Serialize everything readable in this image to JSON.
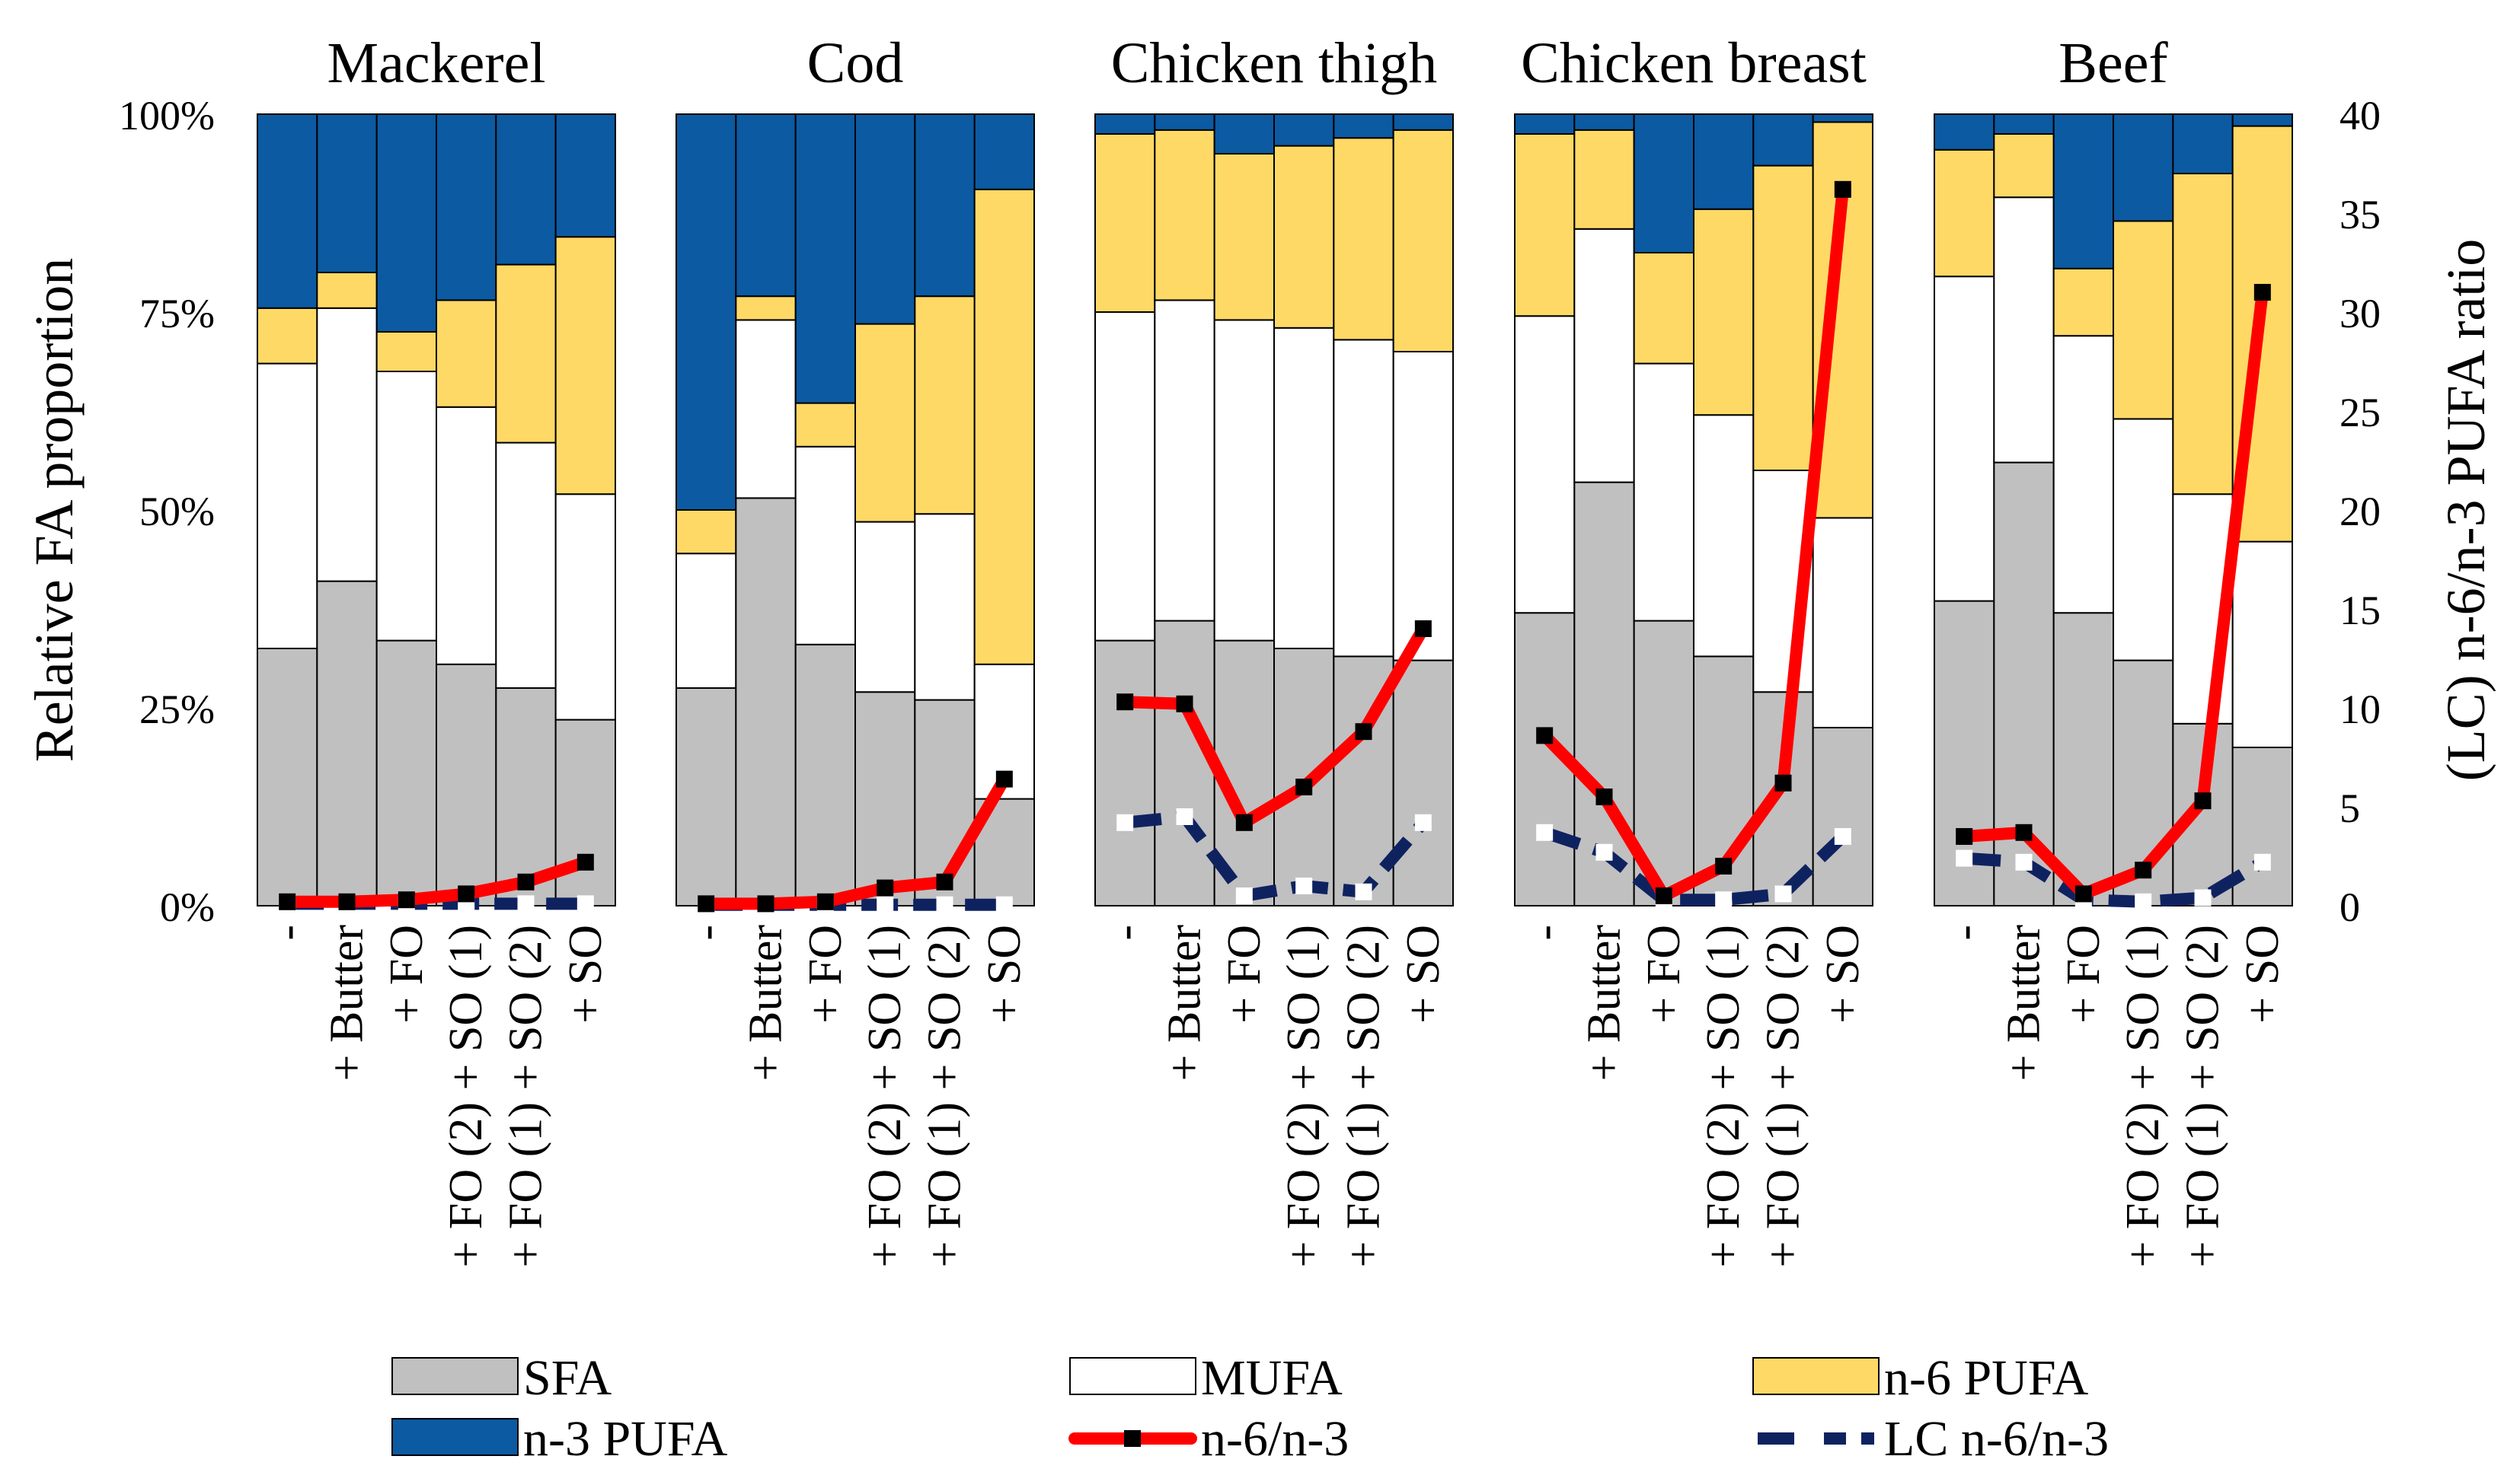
{
  "chart_data": {
    "type": "stacked-bar-with-lines",
    "y_left_label": "Relative FA proportion",
    "y_right_label": "(LC) n-6/n-3 PUFA ratio",
    "y_left_ticks": [
      "0%",
      "25%",
      "50%",
      "75%",
      "100%"
    ],
    "y_left_range": [
      0,
      100
    ],
    "y_right_ticks": [
      "0",
      "5",
      "10",
      "15",
      "20",
      "25",
      "30",
      "35",
      "40"
    ],
    "y_right_range": [
      0,
      40
    ],
    "categories": [
      "-",
      "+ Butter",
      "+ FO",
      "+ FO (2) + SO (1)",
      "+ FO (1) + SO (2)",
      "+ SO"
    ],
    "colors": {
      "SFA": "#c0c0c0",
      "MUFA": "#ffffff",
      "n6": "#ffd966",
      "n3": "#0b5aa2",
      "ratio_line": "#ff0000",
      "ratio_marker": "#000000",
      "lc_line": "#0f2260",
      "lc_marker": "#ffffff",
      "outline": "#000000"
    },
    "legend": {
      "sfa": "SFA",
      "mufa": "MUFA",
      "n6": "n-6 PUFA",
      "n3": "n-3 PUFA",
      "ratio": "n-6/n-3",
      "lc": "LC n-6/n-3"
    },
    "panels": [
      {
        "title": "Mackerel",
        "SFA": [
          32.5,
          41,
          33.5,
          30.5,
          27.5,
          23.5
        ],
        "MUFA": [
          36,
          34.5,
          34,
          32.5,
          31,
          28.5
        ],
        "n6": [
          7,
          4.5,
          5,
          13.5,
          22.5,
          32.5
        ],
        "n3": [
          24.5,
          20,
          27.5,
          23.5,
          19,
          15.5
        ],
        "ratio": [
          0.2,
          0.2,
          0.3,
          0.6,
          1.2,
          2.2
        ],
        "lc_ratio": [
          0.1,
          0.1,
          0.1,
          0.1,
          0.1,
          0.1
        ]
      },
      {
        "title": "Cod",
        "SFA": [
          27.5,
          51.5,
          33,
          27,
          26,
          13.5
        ],
        "MUFA": [
          17,
          22.5,
          25,
          21.5,
          23.5,
          17
        ],
        "n6": [
          5.5,
          3,
          5.5,
          25,
          27.5,
          60
        ],
        "n3": [
          50,
          23,
          36.5,
          26.5,
          23,
          9.5
        ],
        "ratio": [
          0.1,
          0.1,
          0.2,
          0.9,
          1.2,
          6.4
        ],
        "lc_ratio": [
          0.05,
          0.05,
          0.05,
          0.05,
          0.05,
          0.05
        ]
      },
      {
        "title": "Chicken thigh",
        "SFA": [
          33.5,
          36,
          33.5,
          32.5,
          31.5,
          31
        ],
        "MUFA": [
          41.5,
          40.5,
          40.5,
          40.5,
          40,
          39
        ],
        "n6": [
          22.5,
          21.5,
          21,
          23,
          25.5,
          28
        ],
        "n3": [
          2.5,
          2,
          5,
          4,
          3,
          2
        ],
        "ratio": [
          10.3,
          10.2,
          4.2,
          6,
          8.8,
          14
        ],
        "lc_ratio": [
          4.2,
          4.5,
          0.5,
          1,
          0.7,
          4.2
        ]
      },
      {
        "title": "Chicken breast",
        "SFA": [
          37,
          53.5,
          36,
          31.5,
          27,
          22.5
        ],
        "MUFA": [
          37.5,
          32,
          32.5,
          30.5,
          28,
          26.5
        ],
        "n6": [
          23,
          12.5,
          14,
          26,
          38.5,
          50
        ],
        "n3": [
          2.5,
          2,
          17.5,
          12,
          6.5,
          1
        ],
        "ratio": [
          8.6,
          5.5,
          0.5,
          2,
          6.2,
          36.2
        ],
        "lc_ratio": [
          3.7,
          2.7,
          0.3,
          0.3,
          0.6,
          3.5
        ]
      },
      {
        "title": "Beef",
        "SFA": [
          38.5,
          56,
          37,
          31,
          23,
          20
        ],
        "MUFA": [
          41,
          33.5,
          35,
          30.5,
          29,
          26
        ],
        "n6": [
          16,
          8,
          8.5,
          25,
          40.5,
          52.5
        ],
        "n3": [
          4.5,
          2.5,
          19.5,
          13.5,
          7.5,
          1.5
        ],
        "ratio": [
          3.5,
          3.7,
          0.6,
          1.8,
          5.3,
          31
        ],
        "lc_ratio": [
          2.4,
          2.2,
          0.3,
          0.2,
          0.4,
          2.2
        ]
      }
    ]
  }
}
